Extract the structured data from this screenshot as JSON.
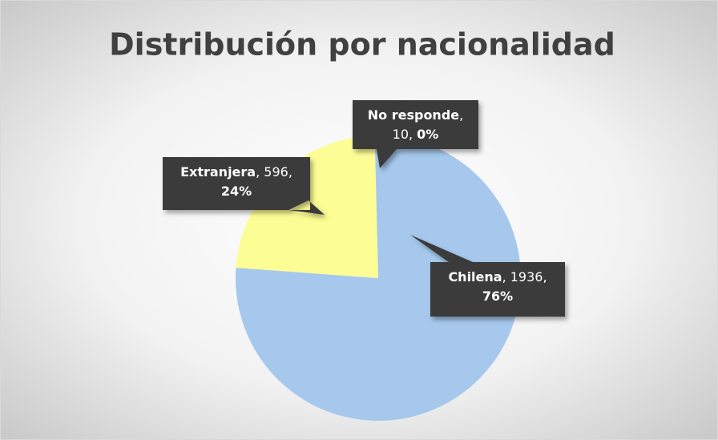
{
  "chart_data": {
    "type": "pie",
    "title": "Distribución por nacionalidad",
    "categories": [
      "Chilena",
      "Extranjera",
      "No responde"
    ],
    "values": [
      1936,
      596,
      10
    ],
    "percent_labels": [
      "76%",
      "24%",
      "0%"
    ],
    "label_separator": ", ",
    "colors": [
      "#a5c8ec",
      "#fdfd96",
      "#a5c8ec"
    ],
    "start_angle": 0,
    "direction": "clockwise"
  }
}
